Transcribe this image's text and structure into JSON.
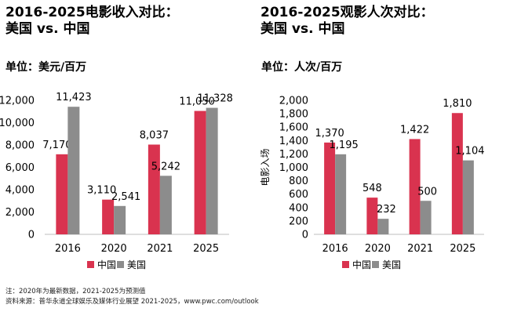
{
  "colors": {
    "china": "#d9334f",
    "us": "#8c8c8c",
    "axis": "#bfbfbf"
  },
  "notes": {
    "note": "注：2020年为最新数据，2021-2025为预测值",
    "source": "资料来源：普华永道全球娱乐及媒体行业展望 2021-2025，www.pwc.com/outlook"
  },
  "chart_data": [
    {
      "type": "bar",
      "title_line1": "2016-2025电影收入对比：",
      "title_line2": "美国 vs. 中国",
      "unit_label": "单位：美元/百万",
      "categories": [
        "2016",
        "2020",
        "2021",
        "2025"
      ],
      "series": [
        {
          "name": "中国",
          "values": [
            7170,
            3110,
            8037,
            11050
          ],
          "labels": [
            "7,170",
            "3,110",
            "8,037",
            "11,050"
          ]
        },
        {
          "name": "美国",
          "values": [
            11423,
            2541,
            5242,
            11328
          ],
          "labels": [
            "11,423",
            "2,541",
            "5,242",
            "11,328"
          ]
        }
      ],
      "yticks": [
        "0",
        "2,000",
        "4,000",
        "6,000",
        "8,000",
        "10,000",
        "12,000"
      ],
      "ylim": [
        0,
        12000
      ],
      "ylabel": "",
      "grid": false,
      "legend_position": "bottom"
    },
    {
      "type": "bar",
      "title_line1": "2016-2025观影人次对比：",
      "title_line2": "美国 vs. 中国",
      "unit_label": "单位：人次/百万",
      "categories": [
        "2016",
        "2020",
        "2021",
        "2025"
      ],
      "series": [
        {
          "name": "中国",
          "values": [
            1370,
            548,
            1422,
            1810
          ],
          "labels": [
            "1,370",
            "548",
            "1,422",
            "1,810"
          ]
        },
        {
          "name": "美国",
          "values": [
            1195,
            232,
            500,
            1104
          ],
          "labels": [
            "1,195",
            "232",
            "500",
            "1,104"
          ]
        }
      ],
      "yticks": [
        "0",
        "200",
        "400",
        "600",
        "800",
        "1,000",
        "1,200",
        "1,400",
        "1,600",
        "1,800",
        "2,000"
      ],
      "ylim": [
        0,
        2000
      ],
      "ylabel": "电影入场",
      "grid": false,
      "legend_position": "bottom"
    }
  ]
}
